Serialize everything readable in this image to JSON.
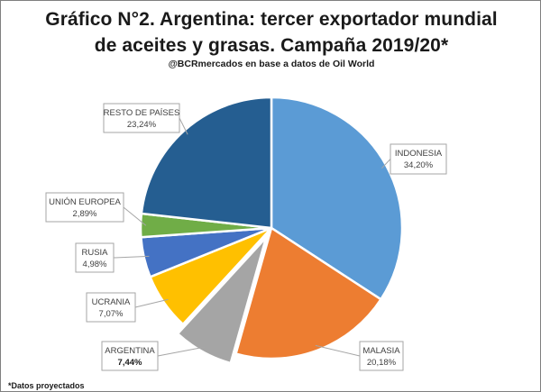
{
  "title_line1": "Gráfico N°2. Argentina: tercer exportador mundial",
  "title_line2": "de aceites y grasas. Campaña 2019/20*",
  "subtitle": "@BCRmercados en base a datos de Oil World",
  "footnote": "*Datos proyectados",
  "chart_data": {
    "type": "pie",
    "title": "Gráfico N°2. Argentina: tercer exportador mundial de aceites y grasas. Campaña 2019/20*",
    "slices": [
      {
        "name": "INDONESIA",
        "value": 34.2,
        "label": "34,20%",
        "color": "#5b9bd5"
      },
      {
        "name": "MALASIA",
        "value": 20.18,
        "label": "20,18%",
        "color": "#ed7d31"
      },
      {
        "name": "ARGENTINA",
        "value": 7.44,
        "label": "7,44%",
        "color": "#a5a5a5",
        "exploded": true,
        "bold_value": true
      },
      {
        "name": "UCRANIA",
        "value": 7.07,
        "label": "7,07%",
        "color": "#ffc000"
      },
      {
        "name": "RUSIA",
        "value": 4.98,
        "label": "4,98%",
        "color": "#4472c4"
      },
      {
        "name": "UNIÓN EUROPEA",
        "value": 2.89,
        "label": "2,89%",
        "color": "#70ad47"
      },
      {
        "name": "RESTO DE PAÍSES",
        "value": 23.24,
        "label": "23,24%",
        "color": "#255e91"
      }
    ],
    "start_angle_deg": 0,
    "direction": "clockwise"
  }
}
